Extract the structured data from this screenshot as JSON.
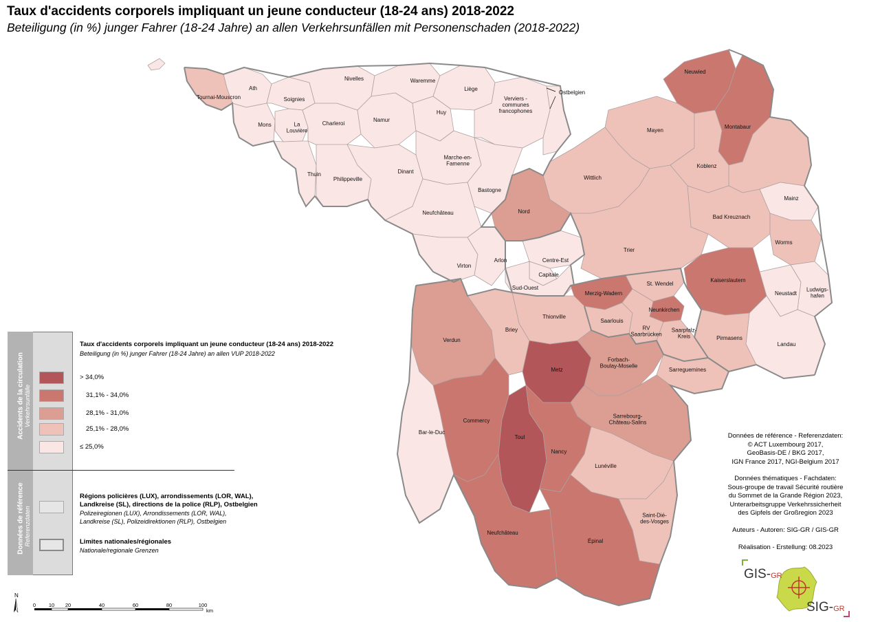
{
  "title": "Taux d'accidents corporels impliquant un jeune conducteur (18-24 ans) 2018-2022",
  "subtitle": "Beteiligung (in %) junger Fahrer (18-24 Jahre) an allen Verkehrsunfällen mit Personenschaden (2018-2022)",
  "legend": {
    "side_title": "Accidents de la circulation",
    "side_subtitle": "Verkehrsunfälle",
    "title": "Taux d'accidents corporels impliquant un jeune conducteur (18-24 ans) 2018-2022",
    "subtitle": "Beteiligung (in %) junger Fahrer (18-24 Jahre) an allen VUP 2018-2022",
    "classes": [
      {
        "label": "> 34,0%",
        "color": "#b3565a"
      },
      {
        "label": "31,1% - 34,0%",
        "color": "#c9776f"
      },
      {
        "label": "28,1% - 31,0%",
        "color": "#dc9e92"
      },
      {
        "label": "25,1% -   28,0%",
        "color": "#efc2b9"
      },
      {
        "label": "≤ 25,0%",
        "color": "#fbe6e6"
      }
    ],
    "ref_side_title": "Données de référence",
    "ref_side_subtitle": "Referenzdaten",
    "ref_items": [
      {
        "title_lines": [
          "Régions policières (LUX), arrondissements (LOR, WAL),",
          "Landkreise (SL), directions de la police (RLP), Ostbelgien"
        ],
        "italic_lines": [
          "Polizeiregionen (LUX), Arrondissements (LOR, WAL),",
          "Landkreise (SL), Polizeidirektionen (RLP), Ostbelgien"
        ]
      },
      {
        "title_lines": [
          "Limites nationales/régionales"
        ],
        "italic_lines": [
          "Nationale/regionale Grenzen"
        ]
      }
    ]
  },
  "credits": {
    "ref_data": [
      "Données de référence - Referenzdaten:",
      "© ACT Luxembourg 2017,",
      "GeoBasis-DE / BKG 2017,",
      "IGN France 2017, NGI-Belgium 2017"
    ],
    "thematic": [
      "Données thématiques - Fachdaten:",
      "Sous-groupe de travail Sécurité routière",
      "du Sommet de la Grande Région 2023,",
      "Unterarbeitsgruppe Verkehrssicherheit",
      "des Gipfels der Großregion 2023"
    ],
    "authors": "Auteurs - Autoren: SIG-GR / GIS-GR",
    "realisation": "Réalisation - Erstellung: 08.2023"
  },
  "logo": {
    "top": "GIS-",
    "top_accent": "GR",
    "bottom": "SIG-",
    "bottom_accent": "GR"
  },
  "scale": {
    "ticks": [
      "0",
      "10",
      "20",
      "40",
      "60",
      "80",
      "100"
    ],
    "unit": "km",
    "north": "N"
  },
  "regions": [
    {
      "name": "Ath",
      "cls": 4
    },
    {
      "name": "Tournai-Mouscron",
      "cls": 3
    },
    {
      "name": "Soignies",
      "cls": 4
    },
    {
      "name": "Mons",
      "cls": 4
    },
    {
      "name": "La Louvière",
      "cls": 4
    },
    {
      "name": "Charleroi",
      "cls": 4
    },
    {
      "name": "Thuin",
      "cls": 4
    },
    {
      "name": "Philippeville",
      "cls": 4
    },
    {
      "name": "Nivelles",
      "cls": 4
    },
    {
      "name": "Namur",
      "cls": 4
    },
    {
      "name": "Dinant",
      "cls": 4
    },
    {
      "name": "Waremme",
      "cls": 4
    },
    {
      "name": "Liège",
      "cls": 4
    },
    {
      "name": "Huy",
      "cls": 4
    },
    {
      "name": "Marche-en-Famenne",
      "cls": 4
    },
    {
      "name": "Verviers - communes francophones",
      "cls": 4
    },
    {
      "name": "Ostbelgien",
      "cls": 4
    },
    {
      "name": "Bastogne",
      "cls": 4
    },
    {
      "name": "Neufchâteau",
      "cls": 4
    },
    {
      "name": "Virton",
      "cls": 4
    },
    {
      "name": "Arlon",
      "cls": 4
    },
    {
      "name": "Nord",
      "cls": 2
    },
    {
      "name": "Centre-Est",
      "cls": 4
    },
    {
      "name": "Capitale",
      "cls": 4
    },
    {
      "name": "Sud-Ouest",
      "cls": 4
    },
    {
      "name": "Neuwied",
      "cls": 1
    },
    {
      "name": "Montabaur",
      "cls": 1
    },
    {
      "name": "Mayen",
      "cls": 3
    },
    {
      "name": "Koblenz",
      "cls": 3
    },
    {
      "name": "Wittlich",
      "cls": 3
    },
    {
      "name": "Mainz",
      "cls": 4
    },
    {
      "name": "Bad Kreuznach",
      "cls": 3
    },
    {
      "name": "Trier",
      "cls": 3
    },
    {
      "name": "Worms",
      "cls": 3
    },
    {
      "name": "Kaiserslautern",
      "cls": 1
    },
    {
      "name": "Neustadt",
      "cls": 4
    },
    {
      "name": "Ludwigs- hafen",
      "cls": 4
    },
    {
      "name": "Landau",
      "cls": 4
    },
    {
      "name": "Pirmasens",
      "cls": 3
    },
    {
      "name": "Merzig-Wadern",
      "cls": 1
    },
    {
      "name": "St. Wendel",
      "cls": 3
    },
    {
      "name": "Neunkirchen",
      "cls": 1
    },
    {
      "name": "Saarlouis",
      "cls": 3
    },
    {
      "name": "RV Saarbrücken",
      "cls": 3
    },
    {
      "name": "Saarpfalz- Kreis",
      "cls": 3
    },
    {
      "name": "Thionville",
      "cls": 3
    },
    {
      "name": "Briey",
      "cls": 3
    },
    {
      "name": "Verdun",
      "cls": 2
    },
    {
      "name": "Metz",
      "cls": 0
    },
    {
      "name": "Forbach- Boulay-Moselle",
      "cls": 2
    },
    {
      "name": "Sarreguemines",
      "cls": 3
    },
    {
      "name": "Sarrebourg- Château-Salins",
      "cls": 2
    },
    {
      "name": "Commercy",
      "cls": 1
    },
    {
      "name": "Bar-le-Duc",
      "cls": 4
    },
    {
      "name": "Toul",
      "cls": 0
    },
    {
      "name": "Nancy",
      "cls": 1
    },
    {
      "name": "Lunéville",
      "cls": 3
    },
    {
      "name": "Saint-Dié- des-Vosges",
      "cls": 3
    },
    {
      "name": "Neufchâteau",
      "cls": 1
    },
    {
      "name": "Épinal",
      "cls": 1
    }
  ]
}
